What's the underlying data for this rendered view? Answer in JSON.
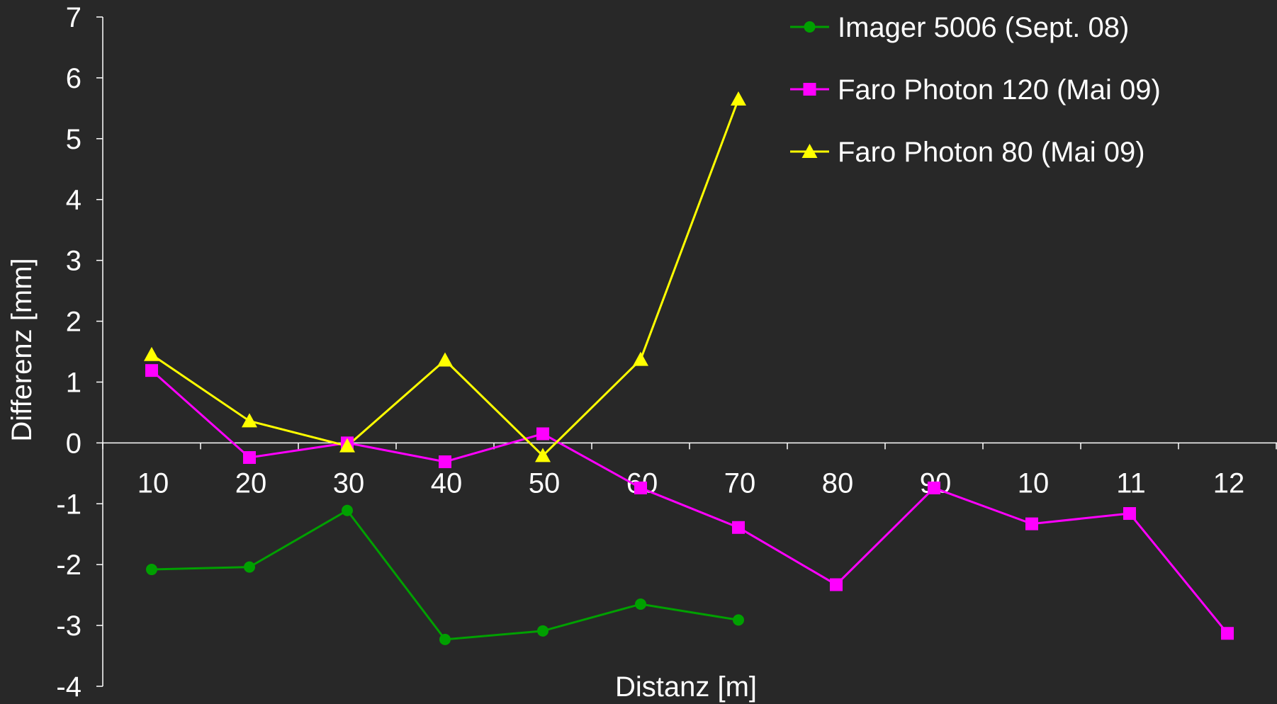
{
  "chart_data": {
    "type": "line",
    "xlabel": "Distanz [m]",
    "ylabel": "Differenz [mm]",
    "categories": [
      "10",
      "20",
      "30",
      "40",
      "50",
      "60",
      "70",
      "80",
      "90",
      "10",
      "11",
      "12"
    ],
    "ylim": [
      -4,
      7
    ],
    "yticks": [
      "-4",
      "-3",
      "-2",
      "-1",
      "0",
      "1",
      "2",
      "3",
      "4",
      "5",
      "6",
      "7"
    ],
    "grid": false,
    "legend_position": "top-right",
    "series": [
      {
        "name": "Imager 5006 (Sept. 08)",
        "color": "#00a000",
        "marker": "circle",
        "values": [
          -2.08,
          -2.04,
          -1.11,
          -3.23,
          -3.09,
          -2.65,
          -2.91,
          null,
          null,
          null,
          null,
          null
        ]
      },
      {
        "name": "Faro Photon 120 (Mai 09)",
        "color": "#ff00ff",
        "marker": "square",
        "values": [
          1.19,
          -0.24,
          0.0,
          -0.31,
          0.15,
          -0.74,
          -1.39,
          -2.33,
          -0.74,
          -1.33,
          -1.16,
          -3.13
        ]
      },
      {
        "name": "Faro Photon 80 (Mai 09)",
        "color": "#ffff00",
        "marker": "triangle",
        "values": [
          1.45,
          0.36,
          -0.05,
          1.36,
          -0.21,
          1.37,
          5.65,
          null,
          null,
          null,
          null,
          null
        ]
      }
    ]
  }
}
